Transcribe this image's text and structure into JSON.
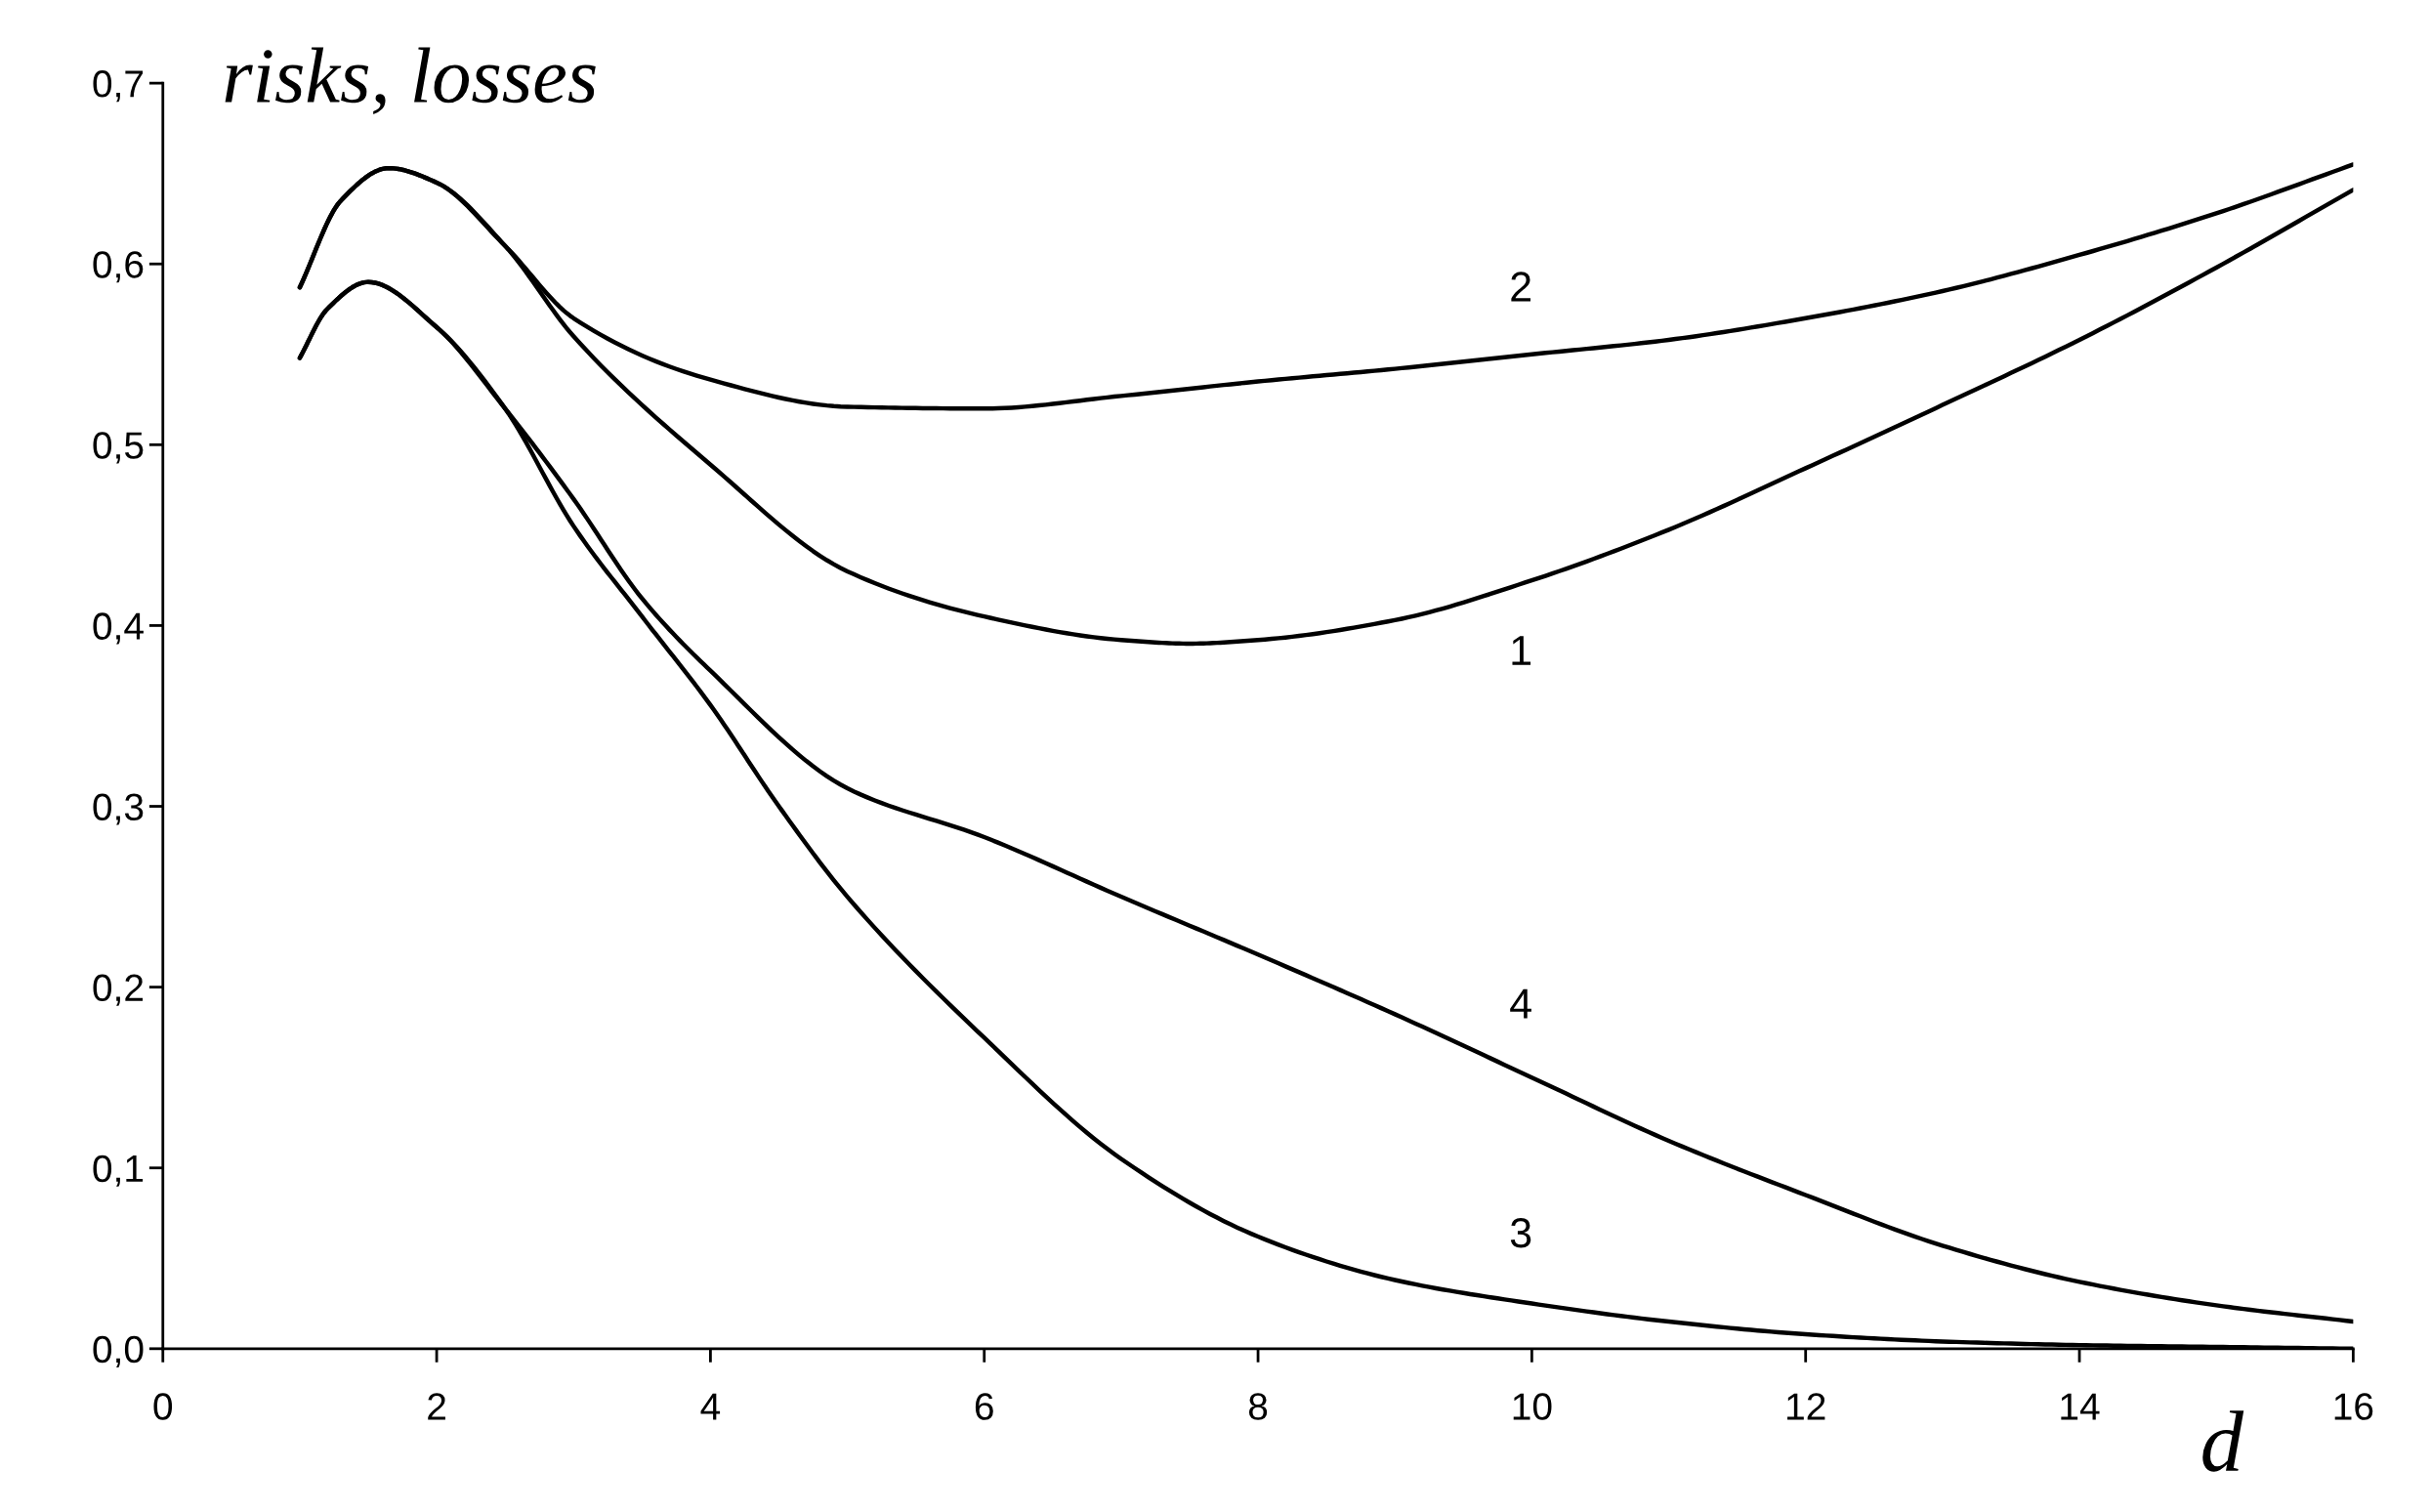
{
  "chart_data": {
    "type": "line",
    "xlabel": "d",
    "ylabel": "risks, losses",
    "xlim": [
      0,
      16
    ],
    "ylim": [
      0,
      0.7
    ],
    "xticks": [
      0,
      2,
      4,
      6,
      8,
      10,
      12,
      14,
      16
    ],
    "yticks": [
      {
        "value": 0,
        "label": "0,0"
      },
      {
        "value": 0.1,
        "label": "0,1"
      },
      {
        "value": 0.2,
        "label": "0,2"
      },
      {
        "value": 0.3,
        "label": "0,3"
      },
      {
        "value": 0.4,
        "label": "0,4"
      },
      {
        "value": 0.5,
        "label": "0,5"
      },
      {
        "value": 0.6,
        "label": "0,6"
      },
      {
        "value": 0.7,
        "label": "0,7"
      }
    ],
    "grid": false,
    "legend": false,
    "line_style": "solid",
    "series": [
      {
        "name": "1",
        "color": "#000000",
        "x": [
          1,
          1.3,
          1.65,
          2,
          2.5,
          3,
          4,
          5,
          6,
          7,
          7.5,
          8,
          9,
          10,
          11,
          12,
          13,
          14,
          15,
          16
        ],
        "values": [
          0.587,
          0.635,
          0.653,
          0.645,
          0.61,
          0.56,
          0.489,
          0.43,
          0.405,
          0.392,
          0.39,
          0.392,
          0.403,
          0.425,
          0.453,
          0.487,
          0.522,
          0.558,
          0.598,
          0.641
        ]
      },
      {
        "name": "2",
        "color": "#000000",
        "x": [
          1,
          1.3,
          1.65,
          2,
          2.5,
          3,
          4,
          5,
          6,
          7,
          8,
          9,
          10,
          11,
          12,
          13,
          14,
          15,
          16
        ],
        "values": [
          0.587,
          0.635,
          0.653,
          0.645,
          0.61,
          0.57,
          0.536,
          0.521,
          0.52,
          0.527,
          0.535,
          0.542,
          0.55,
          0.558,
          0.57,
          0.585,
          0.605,
          0.628,
          0.655
        ]
      },
      {
        "name": "3",
        "color": "#000000",
        "x": [
          1,
          1.2,
          1.5,
          2,
          2.5,
          3,
          3.5,
          4,
          4.5,
          5,
          6,
          7,
          8,
          9,
          10,
          11,
          12,
          13,
          14,
          15,
          16
        ],
        "values": [
          0.548,
          0.575,
          0.59,
          0.565,
          0.52,
          0.455,
          0.405,
          0.356,
          0.3,
          0.25,
          0.172,
          0.105,
          0.062,
          0.038,
          0.025,
          0.015,
          0.008,
          0.004,
          0.002,
          0.001,
          0.0
        ]
      },
      {
        "name": "4",
        "color": "#000000",
        "x": [
          1,
          1.2,
          1.5,
          2,
          2.5,
          3,
          3.5,
          4,
          5,
          6,
          7,
          8,
          9,
          10,
          11,
          12,
          13,
          14,
          15,
          16
        ],
        "values": [
          0.548,
          0.575,
          0.59,
          0.565,
          0.52,
          0.47,
          0.415,
          0.375,
          0.31,
          0.283,
          0.25,
          0.218,
          0.185,
          0.15,
          0.115,
          0.085,
          0.057,
          0.037,
          0.024,
          0.015
        ]
      }
    ],
    "marker": "none"
  }
}
